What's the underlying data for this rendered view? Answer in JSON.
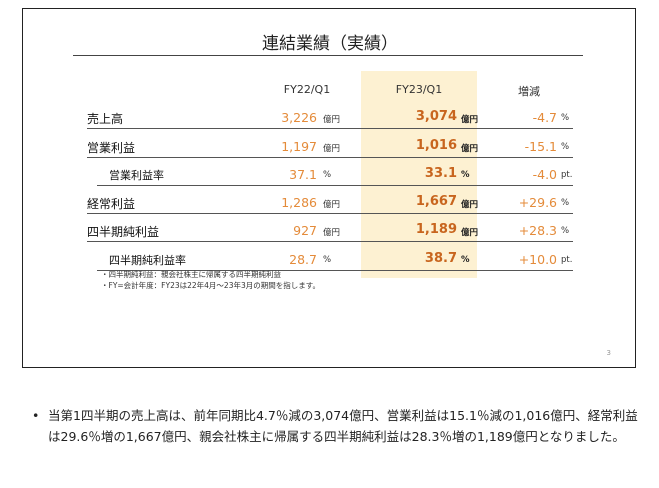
{
  "slide": {
    "title": "連結業績（実績）",
    "headers": {
      "fy22": "FY22/Q1",
      "fy23": "FY23/Q1",
      "change": "増減"
    },
    "rows": [
      {
        "label": "売上高",
        "sub": false,
        "fy22": "3,226",
        "fy22_unit": "億円",
        "fy23": "3,074",
        "fy23_unit": "億円",
        "change": "-4.7",
        "change_unit": "%"
      },
      {
        "label": "営業利益",
        "sub": false,
        "fy22": "1,197",
        "fy22_unit": "億円",
        "fy23": "1,016",
        "fy23_unit": "億円",
        "change": "-15.1",
        "change_unit": "%"
      },
      {
        "label": "営業利益率",
        "sub": true,
        "fy22": "37.1",
        "fy22_unit": "%",
        "fy23": "33.1",
        "fy23_unit": "%",
        "change": "-4.0",
        "change_unit": "pt."
      },
      {
        "label": "経常利益",
        "sub": false,
        "fy22": "1,286",
        "fy22_unit": "億円",
        "fy23": "1,667",
        "fy23_unit": "億円",
        "change": "+29.6",
        "change_unit": "%"
      },
      {
        "label": "四半期純利益",
        "sub": false,
        "fy22": "927",
        "fy22_unit": "億円",
        "fy23": "1,189",
        "fy23_unit": "億円",
        "change": "+28.3",
        "change_unit": "%"
      },
      {
        "label": "四半期純利益率",
        "sub": true,
        "fy22": "28.7",
        "fy22_unit": "%",
        "fy23": "38.7",
        "fy23_unit": "%",
        "change": "+10.0",
        "change_unit": "pt."
      }
    ],
    "notes": [
      "・四半期純利益：親会社株主に帰属する四半期純利益",
      "・FY=会計年度：FY23は22年4月～23年3月の期間を指します。"
    ],
    "page_number": "3"
  },
  "bullet": {
    "dot": "•",
    "text": "当第1四半期の売上高は、前年同期比4.7％減の3,074億円、営業利益は15.1％減の1,016億円、経常利益は29.6％増の1,667億円、親会社株主に帰属する四半期純利益は28.3％増の1,189億円となりました。"
  },
  "colors": {
    "highlight": "#fdf1d2",
    "value_orange": "#e48b3a",
    "value_bold": "#c8651e"
  }
}
